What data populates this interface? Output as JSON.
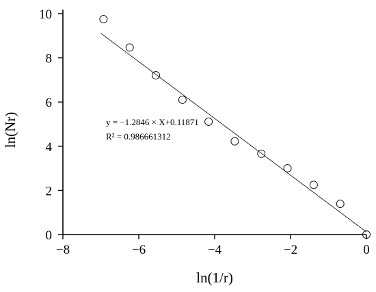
{
  "chart_data": {
    "type": "scatter",
    "xlabel": "ln(1/r)",
    "ylabel": "ln(Nr)",
    "xlim": [
      -8,
      0
    ],
    "ylim": [
      0,
      10
    ],
    "x_ticks": [
      -8,
      -6,
      -4,
      -2,
      0
    ],
    "y_ticks": [
      0,
      2,
      4,
      6,
      8,
      10
    ],
    "x_tick_labels": [
      "−8",
      "−6",
      "−4",
      "−2",
      "0"
    ],
    "y_tick_labels": [
      "0",
      "2",
      "4",
      "6",
      "8",
      "10"
    ],
    "grid": false,
    "series": [
      {
        "marker": "open-circle",
        "x": [
          -6.93,
          -6.24,
          -5.55,
          -4.85,
          -4.16,
          -3.47,
          -2.77,
          -2.08,
          -1.39,
          -0.69,
          0.0
        ],
        "y": [
          9.75,
          8.47,
          7.21,
          6.1,
          5.11,
          4.22,
          3.66,
          3.0,
          2.25,
          1.39,
          0.0
        ]
      }
    ],
    "fit_line": {
      "slope": -1.2846,
      "intercept": 0.11871,
      "x_range": [
        -7.0,
        0.0
      ]
    },
    "annotations": [
      "y = −1.2846 × X+0.11871",
      "R² = 0.986661312"
    ]
  }
}
